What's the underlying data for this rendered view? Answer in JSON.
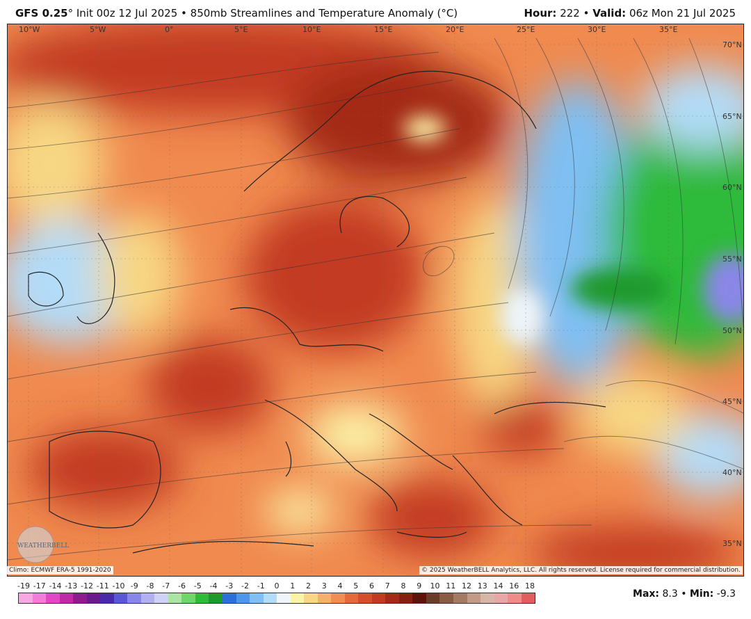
{
  "header": {
    "model": "GFS 0.25",
    "degree": "°",
    "init": "Init 00z 12 Jul 2025",
    "sep": "•",
    "product": "850mb Streamlines and Temperature Anomaly (°C)",
    "hour_label": "Hour:",
    "hour": "222",
    "valid_label": "Valid:",
    "valid": "06z Mon 21 Jul 2025"
  },
  "map": {
    "lon_labels": [
      "10°W",
      "5°W",
      "0°",
      "5°E",
      "10°E",
      "15°E",
      "20°E",
      "25°E",
      "30°E",
      "35°E"
    ],
    "lat_labels": [
      "70°N",
      "65°N",
      "60°N",
      "55°N",
      "50°N",
      "45°N",
      "40°N",
      "35°N"
    ],
    "logo_text": "WEATHERBELL"
  },
  "footer": {
    "climo": "Climo: ECMWF ERA-5 1991-2020",
    "copyright": "© 2025 WeatherBELL Analytics, LLC. All rights reserved. License required for commercial distribution."
  },
  "legend": {
    "labels": [
      "-19",
      "-17",
      "-14",
      "-13",
      "-12",
      "-11",
      "-10",
      "-9",
      "-8",
      "-7",
      "-6",
      "-5",
      "-4",
      "-3",
      "-2",
      "-1",
      "0",
      "1",
      "2",
      "3",
      "4",
      "5",
      "6",
      "7",
      "8",
      "9",
      "10",
      "11",
      "12",
      "13",
      "14",
      "16",
      "18"
    ],
    "colors": [
      "#f9a7e3",
      "#f47bd7",
      "#e447c4",
      "#c02aa6",
      "#8e1c8f",
      "#6a1a8c",
      "#4a2aa8",
      "#5a57d6",
      "#8a86e8",
      "#b3b0f2",
      "#cfd1f7",
      "#a9e6a4",
      "#6fd66a",
      "#2fba3a",
      "#1d9a2b",
      "#2d6fd8",
      "#4c97ea",
      "#7fbff3",
      "#b3dcf8",
      "#eef6fc",
      "#fbf3a8",
      "#f7d783",
      "#f3b16b",
      "#ef8d52",
      "#e46a3c",
      "#d44e2c",
      "#c23a20",
      "#a42a16",
      "#86200f",
      "#5e130a",
      "#6b3b2a",
      "#8a5a42",
      "#a57a63",
      "#c29a87",
      "#d7b6a7",
      "#e9a6a6",
      "#f08b8b",
      "#e25d5d"
    ]
  },
  "stats": {
    "max_label": "Max:",
    "max": "8.3",
    "min_label": "Min:",
    "min": "-9.3",
    "sep": "•"
  }
}
